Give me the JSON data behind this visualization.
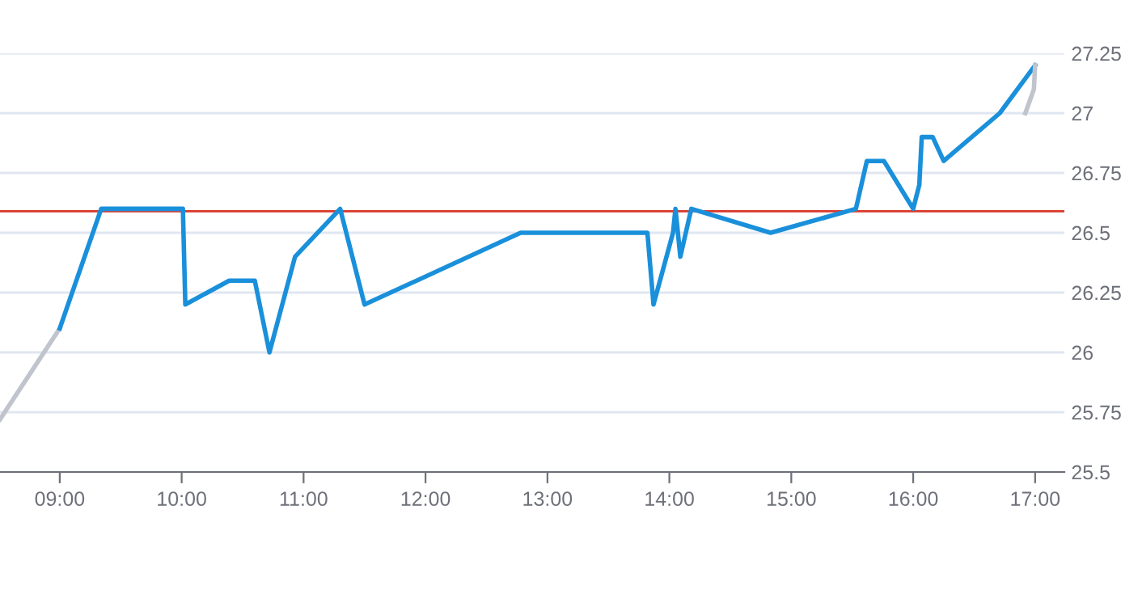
{
  "chart_data": {
    "type": "line",
    "series": [
      {
        "color": "#c0c4cc",
        "x": [
          8.51,
          9.0
        ],
        "values": [
          25.72,
          26.1
        ]
      },
      {
        "color": "#1a90db",
        "x": [
          9.0,
          9.34,
          10.01,
          10.03,
          10.39,
          10.6,
          10.72,
          10.93,
          11.3,
          11.5,
          12.78,
          13.82,
          13.87,
          14.03,
          14.05,
          14.09,
          14.18,
          14.83,
          15.53,
          15.62,
          15.76,
          16.0,
          16.05,
          16.07,
          16.16,
          16.25,
          16.71,
          17.0
        ],
        "values": [
          26.1,
          26.6,
          26.6,
          26.2,
          26.3,
          26.3,
          26.0,
          26.4,
          26.6,
          26.2,
          26.5,
          26.5,
          26.2,
          26.5,
          26.6,
          26.4,
          26.6,
          26.5,
          26.6,
          26.8,
          26.8,
          26.6,
          26.7,
          26.9,
          26.9,
          26.8,
          27.0,
          27.2
        ]
      },
      {
        "color": "#c0c4cc",
        "x": [
          16.92,
          16.99,
          17.0
        ],
        "values": [
          27.0,
          27.1,
          27.2
        ]
      }
    ],
    "ref_lines": [
      {
        "axis": "y",
        "value": 26.59,
        "color": "#d9392b"
      }
    ],
    "xlim": [
      8.51,
      17.24
    ],
    "xticks": [
      {
        "value": 9,
        "label": "09:00"
      },
      {
        "value": 10,
        "label": "10:00"
      },
      {
        "value": 11,
        "label": "11:00"
      },
      {
        "value": 12,
        "label": "12:00"
      },
      {
        "value": 13,
        "label": "13:00"
      },
      {
        "value": 14,
        "label": "14:00"
      },
      {
        "value": 15,
        "label": "15:00"
      },
      {
        "value": 16,
        "label": "16:00"
      },
      {
        "value": 17,
        "label": "17:00"
      }
    ],
    "ylim": [
      25.5,
      27.25
    ],
    "yticks": [
      25.5,
      25.75,
      26,
      26.25,
      26.5,
      26.75,
      27,
      27.25
    ],
    "grid": "y",
    "marker": "none"
  }
}
